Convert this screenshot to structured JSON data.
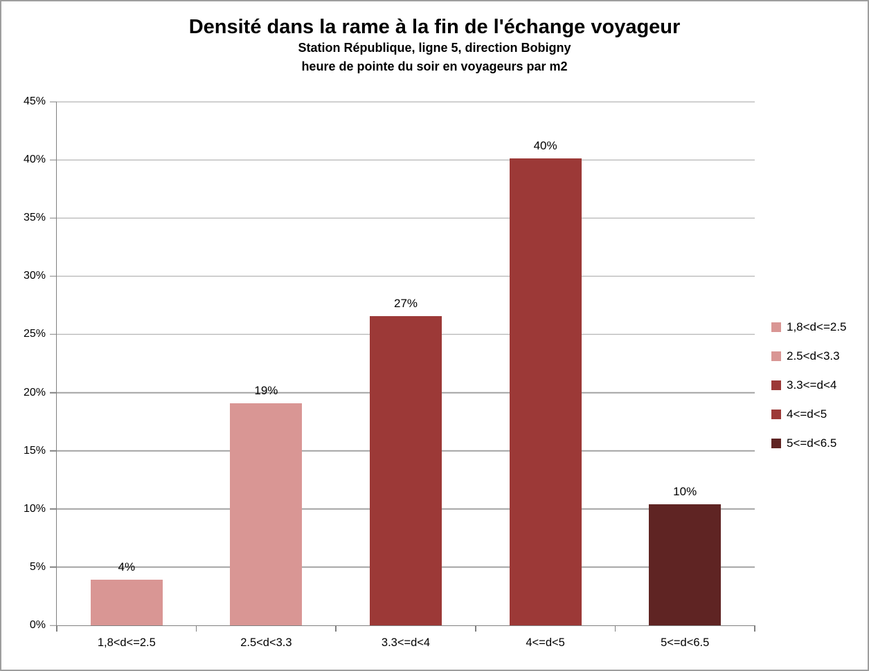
{
  "window": {
    "background": "#FFFFFF",
    "frame_border_color": "#9E9E9E"
  },
  "chart_data": {
    "type": "bar",
    "title": "Densité dans la rame à la fin de l'échange voyageur",
    "subtitle_line1": "Station République, ligne 5, direction Bobigny",
    "subtitle_line2": "heure de pointe du soir en voyageurs par m2",
    "categories": [
      "1,8<d<=2.5",
      "2.5<d<3.3",
      "3.3<=d<4",
      "4<=d<5",
      "5<=d<6.5"
    ],
    "values": [
      3.9,
      19.1,
      26.6,
      40.1,
      10.4
    ],
    "value_labels": [
      "4%",
      "19%",
      "27%",
      "40%",
      "10%"
    ],
    "bar_colors": [
      "#D99694",
      "#D99694",
      "#9C3937",
      "#9C3937",
      "#5F2423"
    ],
    "xlabel": "",
    "ylabel": "",
    "ylim": [
      0,
      45
    ],
    "ytick_step": 5,
    "ytick_labels": [
      "0%",
      "5%",
      "10%",
      "15%",
      "20%",
      "25%",
      "30%",
      "35%",
      "40%",
      "45%"
    ],
    "grid": true,
    "bar_slot_fill_ratio": 0.515,
    "legend": {
      "position": "right",
      "entries": [
        {
          "label": "1,8<d<=2.5",
          "color": "#D99694"
        },
        {
          "label": "2.5<d<3.3",
          "color": "#D99694"
        },
        {
          "label": "3.3<=d<4",
          "color": "#9C3937"
        },
        {
          "label": "4<=d<5",
          "color": "#9C3937"
        },
        {
          "label": "5<=d<6.5",
          "color": "#5F2423"
        }
      ]
    },
    "style_colors": {
      "gridline": "#A3A3A3",
      "axis": "#808080",
      "text": "#000000"
    }
  }
}
